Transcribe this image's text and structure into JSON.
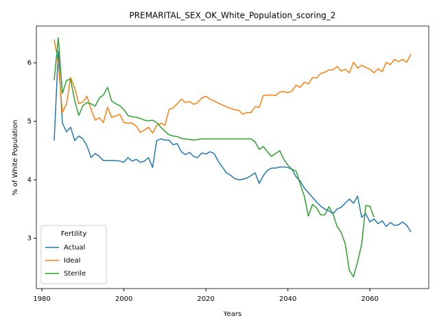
{
  "chart_data": {
    "type": "line",
    "title": "PREMARITAL_SEX_OK_White_Population_scoring_2",
    "x_label": "Years",
    "y_label": "% of White Population",
    "x": [
      1983,
      1984,
      1985,
      1986,
      1987,
      1988,
      1989,
      1990,
      1991,
      1992,
      1993,
      1994,
      1995,
      1996,
      1997,
      1998,
      1999,
      2000,
      2001,
      2002,
      2003,
      2004,
      2005,
      2006,
      2007,
      2008,
      2009,
      2010,
      2011,
      2012,
      2013,
      2014,
      2015,
      2016,
      2017,
      2018,
      2019,
      2020,
      2021,
      2022,
      2023,
      2024,
      2025,
      2026,
      2027,
      2028,
      2029,
      2030,
      2031,
      2032,
      2033,
      2034,
      2035,
      2036,
      2037,
      2038,
      2039,
      2040,
      2041,
      2042,
      2043,
      2044,
      2045,
      2046,
      2047,
      2048,
      2049,
      2050,
      2051,
      2052,
      2053,
      2054,
      2055,
      2056,
      2057,
      2058,
      2059,
      2060,
      2061,
      2062,
      2063,
      2064,
      2065,
      2066,
      2067,
      2068,
      2069,
      2070
    ],
    "series": [
      {
        "name": "Actual",
        "color": "#1f77b4",
        "values": [
          4.67,
          6.2,
          4.97,
          4.82,
          4.9,
          4.67,
          4.75,
          4.7,
          4.58,
          4.38,
          4.45,
          4.4,
          4.33,
          4.33,
          4.33,
          4.33,
          4.32,
          4.3,
          4.38,
          4.32,
          4.35,
          4.3,
          4.32,
          4.38,
          4.21,
          4.67,
          4.7,
          4.68,
          4.68,
          4.6,
          4.62,
          4.48,
          4.43,
          4.47,
          4.4,
          4.38,
          4.46,
          4.44,
          4.48,
          4.45,
          4.32,
          4.22,
          4.12,
          4.08,
          4.02,
          4.0,
          4.01,
          4.03,
          4.07,
          4.12,
          3.94,
          4.07,
          4.16,
          4.2,
          4.2,
          4.22,
          4.22,
          4.21,
          4.18,
          4.05,
          3.98,
          3.86,
          3.78,
          3.7,
          3.62,
          3.55,
          3.5,
          3.47,
          3.42,
          3.5,
          3.53,
          3.6,
          3.67,
          3.6,
          3.72,
          3.36,
          3.42,
          3.28,
          3.33,
          3.25,
          3.3,
          3.2,
          3.27,
          3.22,
          3.23,
          3.28,
          3.22,
          3.11
        ]
      },
      {
        "name": "Ideal",
        "color": "#ff7f0e",
        "values": [
          6.4,
          6.0,
          5.15,
          5.3,
          5.75,
          5.57,
          5.3,
          5.33,
          5.43,
          5.2,
          5.02,
          5.06,
          4.98,
          5.24,
          5.07,
          5.09,
          5.12,
          4.98,
          4.97,
          4.97,
          4.92,
          4.81,
          4.85,
          4.9,
          4.8,
          4.93,
          4.97,
          4.93,
          5.2,
          5.23,
          5.3,
          5.38,
          5.32,
          5.34,
          5.29,
          5.32,
          5.4,
          5.43,
          5.38,
          5.35,
          5.31,
          5.28,
          5.25,
          5.22,
          5.2,
          5.19,
          5.12,
          5.15,
          5.15,
          5.25,
          5.24,
          5.44,
          5.45,
          5.45,
          5.44,
          5.5,
          5.51,
          5.49,
          5.52,
          5.62,
          5.58,
          5.67,
          5.64,
          5.75,
          5.74,
          5.82,
          5.84,
          5.88,
          5.88,
          5.94,
          5.86,
          5.89,
          5.83,
          6.01,
          5.91,
          5.96,
          5.92,
          5.89,
          5.83,
          5.9,
          5.85,
          6.01,
          5.97,
          6.06,
          6.02,
          6.06,
          6.01,
          6.15
        ]
      },
      {
        "name": "Sterile",
        "color": "#2ca02c",
        "values": [
          5.7,
          6.43,
          5.48,
          5.7,
          5.72,
          5.35,
          5.1,
          5.27,
          5.32,
          5.3,
          5.26,
          5.4,
          5.45,
          5.58,
          5.35,
          5.3,
          5.27,
          5.2,
          5.1,
          5.08,
          5.07,
          5.05,
          5.02,
          5.01,
          5.02,
          4.98,
          4.9,
          4.83,
          4.77,
          4.75,
          4.74,
          4.71,
          4.7,
          4.69,
          4.68,
          4.69,
          4.7,
          4.7,
          4.7,
          4.7,
          4.7,
          4.7,
          4.7,
          4.7,
          4.7,
          4.7,
          4.7,
          4.7,
          4.7,
          4.65,
          4.52,
          4.57,
          4.48,
          4.4,
          4.45,
          4.5,
          4.35,
          4.25,
          4.18,
          4.15,
          3.93,
          3.72,
          3.38,
          3.58,
          3.52,
          3.4,
          3.4,
          3.54,
          3.42,
          3.2,
          3.1,
          2.9,
          2.45,
          2.34,
          2.6,
          2.9,
          3.56,
          3.55,
          3.36,
          null,
          null,
          null,
          null,
          null,
          null,
          null,
          null,
          null
        ]
      }
    ],
    "legend_title": "Fertility",
    "legend": "lower left",
    "xlim": [
      1978.65,
      2074.35
    ],
    "xticks": [
      1980,
      2000,
      2020,
      2040,
      2060
    ],
    "ylim": [
      2.14,
      6.63
    ],
    "yticks": [
      3,
      4,
      5,
      6
    ],
    "grid": false
  }
}
